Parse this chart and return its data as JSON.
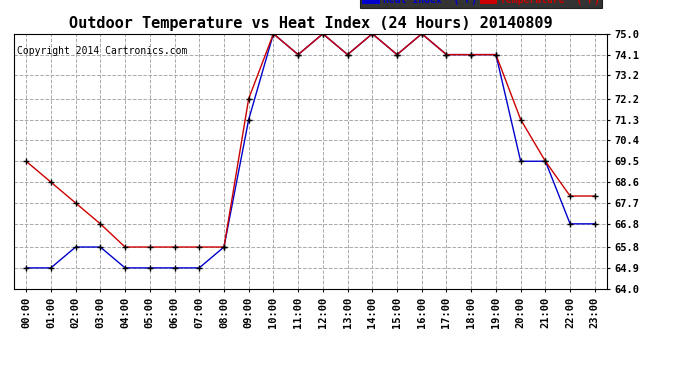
{
  "title": "Outdoor Temperature vs Heat Index (24 Hours) 20140809",
  "copyright": "Copyright 2014 Cartronics.com",
  "legend_heat": "Heat Index  (°F)",
  "legend_temp": "Temperature  (°F)",
  "x_labels": [
    "00:00",
    "01:00",
    "02:00",
    "03:00",
    "04:00",
    "05:00",
    "06:00",
    "07:00",
    "08:00",
    "09:00",
    "10:00",
    "11:00",
    "12:00",
    "13:00",
    "14:00",
    "15:00",
    "16:00",
    "17:00",
    "18:00",
    "19:00",
    "20:00",
    "21:00",
    "22:00",
    "23:00"
  ],
  "heat_index": [
    64.9,
    64.9,
    65.8,
    65.8,
    64.9,
    64.9,
    64.9,
    64.9,
    65.8,
    71.3,
    75.0,
    74.1,
    75.0,
    74.1,
    75.0,
    74.1,
    75.0,
    74.1,
    74.1,
    74.1,
    69.5,
    69.5,
    66.8,
    66.8
  ],
  "temperature": [
    69.5,
    68.6,
    67.7,
    66.8,
    65.8,
    65.8,
    65.8,
    65.8,
    65.8,
    72.2,
    75.0,
    74.1,
    75.0,
    74.1,
    75.0,
    74.1,
    75.0,
    74.1,
    74.1,
    74.1,
    71.3,
    69.5,
    68.0,
    68.0
  ],
  "ylim_min": 64.0,
  "ylim_max": 75.0,
  "ytick_labels": [
    "64.0",
    "64.9",
    "65.8",
    "66.8",
    "67.7",
    "68.6",
    "69.5",
    "70.4",
    "71.3",
    "72.2",
    "73.2",
    "74.1",
    "75.0"
  ],
  "ytick_values": [
    64.0,
    64.9,
    65.8,
    66.8,
    67.7,
    68.6,
    69.5,
    70.4,
    71.3,
    72.2,
    73.2,
    74.1,
    75.0
  ],
  "heat_color": "#0000cc",
  "temp_color": "#cc0000",
  "marker_color": "#000000",
  "bg_color": "#ffffff",
  "grid_color": "#aaaaaa",
  "title_fontsize": 11,
  "tick_fontsize": 7.5,
  "copyright_fontsize": 7
}
